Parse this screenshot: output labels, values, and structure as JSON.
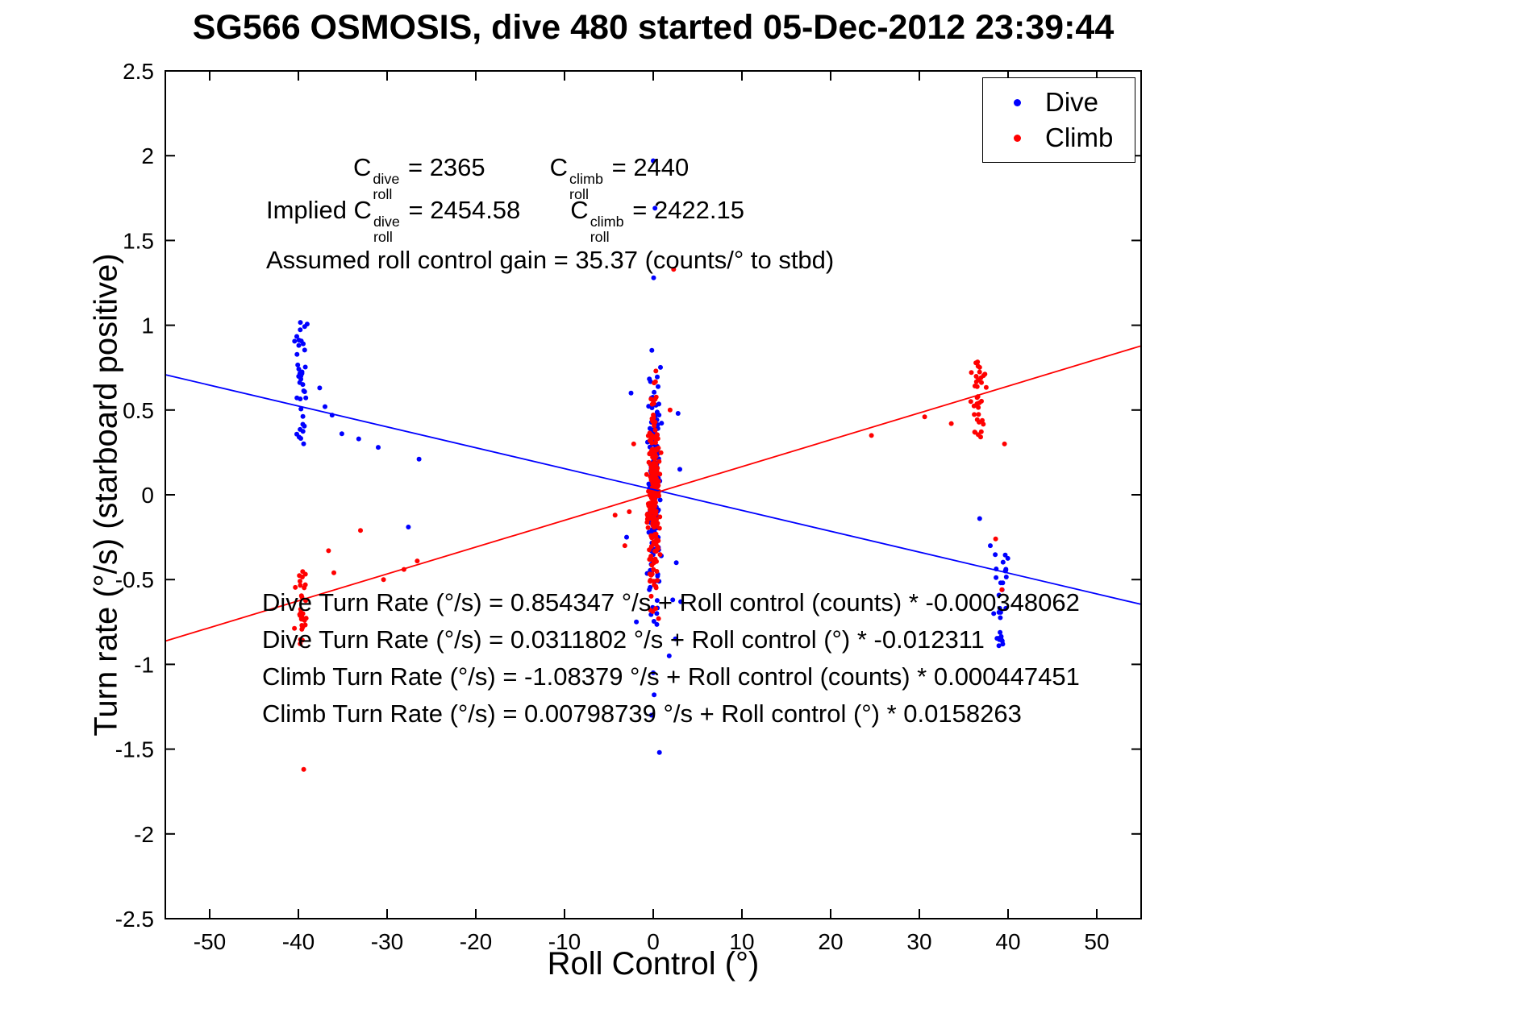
{
  "title": "SG566 OSMOSIS, dive 480 started 05-Dec-2012 23:39:44",
  "annotations": {
    "coeff": {
      "segments": [
        {
          "text": "C"
        },
        {
          "sup": "dive",
          "sub": "roll"
        },
        {
          "text": " = 2365"
        },
        {
          "gap": 80
        },
        {
          "text": "C"
        },
        {
          "sup": "climb",
          "sub": "roll"
        },
        {
          "text": " = 2440"
        }
      ]
    },
    "implied": {
      "segments": [
        {
          "text": "Implied C"
        },
        {
          "sup": "dive",
          "sub": "roll"
        },
        {
          "text": " = 2454.58"
        },
        {
          "gap": 62
        },
        {
          "text": "C"
        },
        {
          "sup": "climb",
          "sub": "roll"
        },
        {
          "text": " = 2422.15"
        }
      ]
    },
    "gain": {
      "text": "Assumed roll control gain = 35.37 (counts/° to stbd)"
    },
    "equations": [
      "Dive Turn Rate (°/s) = 0.854347 °/s + Roll control (counts) * -0.000348062",
      "Dive Turn Rate (°/s) = 0.0311802 °/s + Roll control (°) * -0.012311",
      "Climb Turn Rate (°/s) = -1.08379 °/s + Roll control (counts) * 0.000447451",
      "Climb Turn Rate (°/s) = 0.00798739 °/s + Roll control (°) * 0.0158263"
    ]
  },
  "chart_data": {
    "type": "scatter",
    "title": "SG566 OSMOSIS, dive 480 started 05-Dec-2012 23:39:44",
    "xlabel": "Roll Control (°)",
    "ylabel": "Turn rate (°/s) (starboard positive)",
    "xlim": [
      -55,
      55
    ],
    "ylim": [
      -2.5,
      2.5
    ],
    "xticks": [
      -50,
      -40,
      -30,
      -20,
      -10,
      0,
      10,
      20,
      30,
      40,
      50
    ],
    "yticks": [
      -2.5,
      -2,
      -1.5,
      -1,
      -0.5,
      0,
      0.5,
      1,
      1.5,
      2,
      2.5
    ],
    "grid": false,
    "legend_position": "top-right",
    "legend_entries": [
      "Dive",
      "Climb"
    ],
    "coefficients": {
      "C_roll_dive_counts": 2365,
      "C_roll_climb_counts": 2440,
      "implied_C_roll_dive_counts": 2454.58,
      "implied_C_roll_climb_counts": 2422.15,
      "roll_control_gain_counts_per_deg": 35.37
    },
    "series": [
      {
        "name": "Dive",
        "color": "#0000ff",
        "marker": "dot",
        "fit": {
          "intercept": 0.0311802,
          "slope": -0.012311
        },
        "clusters": [
          {
            "cx": -39.7,
            "sx": 0.45,
            "ymin": 0.3,
            "ymax": 1.02,
            "n": 38,
            "seed": 11
          },
          {
            "cx": 0.15,
            "sx": 0.42,
            "cy": 0.05,
            "sy": 0.34,
            "n": 150,
            "seed": 12
          },
          {
            "cx": 39.3,
            "sx": 0.42,
            "ymin": -0.92,
            "ymax": -0.3,
            "n": 30,
            "seed": 13
          }
        ],
        "outliers": [
          [
            -37.6,
            0.63
          ],
          [
            -37.0,
            0.52
          ],
          [
            -36.2,
            0.47
          ],
          [
            -35.1,
            0.36
          ],
          [
            -33.2,
            0.33
          ],
          [
            -31.0,
            0.28
          ],
          [
            -27.6,
            -0.19
          ],
          [
            -26.4,
            0.21
          ],
          [
            0.0,
            1.97
          ],
          [
            0.2,
            1.69
          ],
          [
            0.05,
            1.28
          ],
          [
            -0.2,
            -1.3
          ],
          [
            0.1,
            -1.18
          ],
          [
            0.0,
            -1.05
          ],
          [
            0.7,
            -1.52
          ],
          [
            2.8,
            0.48
          ],
          [
            3.0,
            0.15
          ],
          [
            2.6,
            -0.4
          ],
          [
            -2.5,
            0.6
          ],
          [
            -3.0,
            -0.25
          ],
          [
            2.2,
            -0.62
          ],
          [
            2.5,
            -0.85
          ],
          [
            3.1,
            -0.63
          ],
          [
            -1.9,
            -0.75
          ],
          [
            1.8,
            -0.95
          ],
          [
            36.8,
            -0.14
          ],
          [
            38.0,
            -0.3
          ]
        ]
      },
      {
        "name": "Climb",
        "color": "#ff0000",
        "marker": "dot",
        "fit": {
          "intercept": 0.00798739,
          "slope": 0.0158263
        },
        "clusters": [
          {
            "cx": -39.6,
            "sx": 0.4,
            "ymin": -0.88,
            "ymax": -0.44,
            "n": 30,
            "seed": 21
          },
          {
            "cx": 0.05,
            "sx": 0.38,
            "cy": 0.0,
            "sy": 0.27,
            "n": 220,
            "seed": 22
          },
          {
            "cx": 36.7,
            "sx": 0.45,
            "ymin": 0.33,
            "ymax": 0.8,
            "n": 34,
            "seed": 23
          }
        ],
        "outliers": [
          [
            -39.4,
            -1.62
          ],
          [
            -36.6,
            -0.33
          ],
          [
            -36.0,
            -0.46
          ],
          [
            -33.0,
            -0.21
          ],
          [
            -30.4,
            -0.5
          ],
          [
            -28.1,
            -0.44
          ],
          [
            -26.6,
            -0.39
          ],
          [
            2.3,
            1.33
          ],
          [
            -2.2,
            0.3
          ],
          [
            -2.7,
            -0.1
          ],
          [
            -3.2,
            -0.3
          ],
          [
            1.9,
            0.5
          ],
          [
            -4.3,
            -0.12
          ],
          [
            0.3,
            0.73
          ],
          [
            0.1,
            0.66
          ],
          [
            -0.3,
            -0.68
          ],
          [
            0.6,
            -0.73
          ],
          [
            24.6,
            0.35
          ],
          [
            30.6,
            0.46
          ],
          [
            33.6,
            0.42
          ],
          [
            35.8,
            0.55
          ],
          [
            38.6,
            -0.26
          ],
          [
            39.3,
            -0.56
          ],
          [
            39.6,
            0.3
          ]
        ]
      }
    ]
  }
}
